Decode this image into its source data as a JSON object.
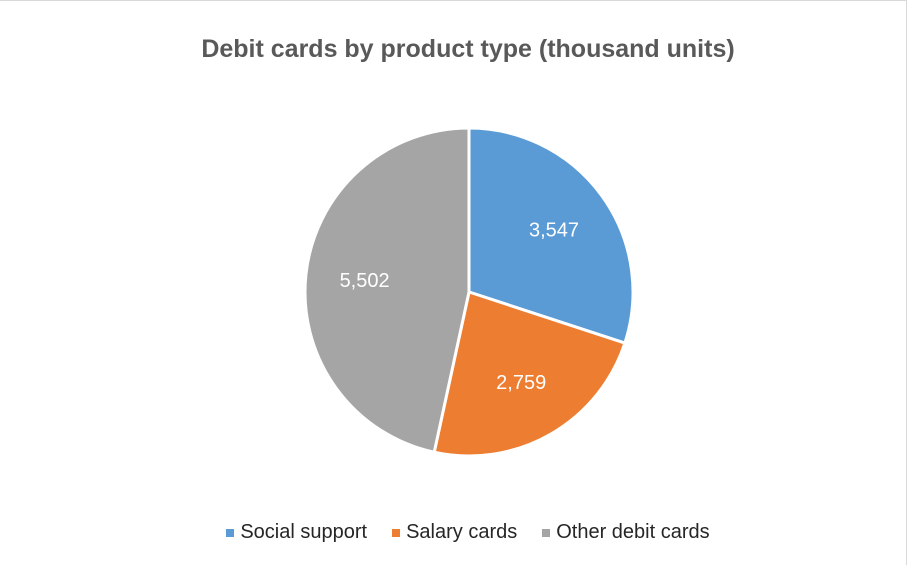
{
  "chart_data": {
    "type": "pie",
    "title": "Debit cards by product type (thousand units)",
    "categories": [
      "Social support",
      "Salary cards",
      "Other debit cards"
    ],
    "values": [
      3547,
      2759,
      5502
    ],
    "value_labels": [
      "3,547",
      "2,759",
      "5,502"
    ],
    "colors": [
      "#5b9bd5",
      "#ed7d31",
      "#a5a5a5"
    ],
    "legend_position": "bottom",
    "start_angle": "12 o'clock",
    "direction": "clockwise"
  }
}
